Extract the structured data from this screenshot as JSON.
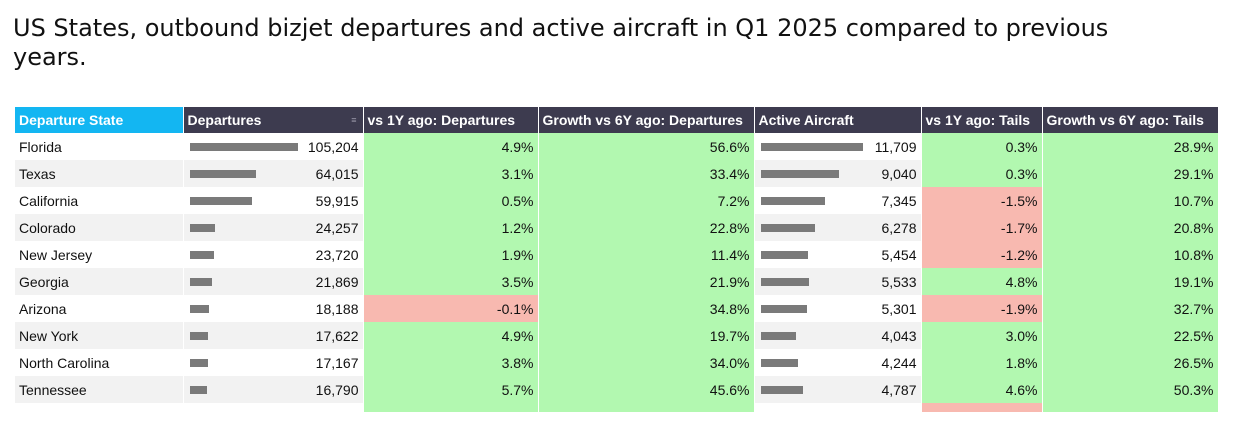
{
  "title": "US States, outbound bizjet departures and active aircraft in Q1 2025 compared to previous years.",
  "table": {
    "headers": [
      "Departure State",
      "Departures",
      "vs 1Y ago: Departures",
      "Growth vs 6Y ago: Departures",
      "Active Aircraft",
      "vs 1Y ago: Tails",
      "Growth vs 6Y ago: Tails"
    ],
    "rows": [
      {
        "state": "Florida",
        "departures": "105,204",
        "dep_1y": "4.9%",
        "dep_6y": "56.6%",
        "aircraft": "11,709",
        "tails_1y": "0.3%",
        "tails_6y": "28.9%"
      },
      {
        "state": "Texas",
        "departures": "64,015",
        "dep_1y": "3.1%",
        "dep_6y": "33.4%",
        "aircraft": "9,040",
        "tails_1y": "0.3%",
        "tails_6y": "29.1%"
      },
      {
        "state": "California",
        "departures": "59,915",
        "dep_1y": "0.5%",
        "dep_6y": "7.2%",
        "aircraft": "7,345",
        "tails_1y": "-1.5%",
        "tails_6y": "10.7%"
      },
      {
        "state": "Colorado",
        "departures": "24,257",
        "dep_1y": "1.2%",
        "dep_6y": "22.8%",
        "aircraft": "6,278",
        "tails_1y": "-1.7%",
        "tails_6y": "20.8%"
      },
      {
        "state": "New Jersey",
        "departures": "23,720",
        "dep_1y": "1.9%",
        "dep_6y": "11.4%",
        "aircraft": "5,454",
        "tails_1y": "-1.2%",
        "tails_6y": "10.8%"
      },
      {
        "state": "Georgia",
        "departures": "21,869",
        "dep_1y": "3.5%",
        "dep_6y": "21.9%",
        "aircraft": "5,533",
        "tails_1y": "4.8%",
        "tails_6y": "19.1%"
      },
      {
        "state": "Arizona",
        "departures": "18,188",
        "dep_1y": "-0.1%",
        "dep_6y": "34.8%",
        "aircraft": "5,301",
        "tails_1y": "-1.9%",
        "tails_6y": "32.7%"
      },
      {
        "state": "New York",
        "departures": "17,622",
        "dep_1y": "4.9%",
        "dep_6y": "19.7%",
        "aircraft": "4,043",
        "tails_1y": "3.0%",
        "tails_6y": "22.5%"
      },
      {
        "state": "North Carolina",
        "departures": "17,167",
        "dep_1y": "3.8%",
        "dep_6y": "34.0%",
        "aircraft": "4,244",
        "tails_1y": "1.8%",
        "tails_6y": "26.5%"
      },
      {
        "state": "Tennessee",
        "departures": "16,790",
        "dep_1y": "5.7%",
        "dep_6y": "45.6%",
        "aircraft": "4,787",
        "tails_1y": "4.6%",
        "tails_6y": "50.3%"
      }
    ]
  },
  "colors": {
    "header_bg": "#3d3b4f",
    "active_header_bg": "#13b6f2",
    "positive_bg": "#b2f8b0",
    "negative_bg": "#f8b9b0",
    "bar": "#7a7a7a"
  },
  "icons": {
    "sort": "sort-icon"
  }
}
